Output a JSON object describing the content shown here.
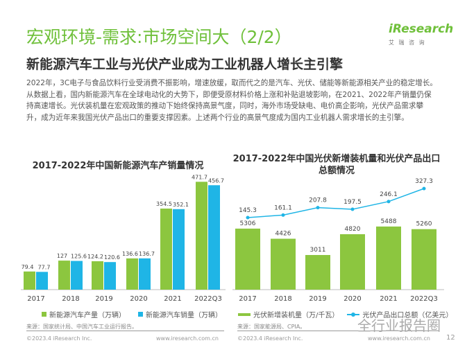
{
  "header": {
    "title": "宏观环境-需求:市场空间大（2/2）",
    "subtitle": "新能源汽车工业与光伏产业成为工业机器人增长主引擎",
    "logo": "iResearch",
    "logo_sub": "艾 瑞 咨 询"
  },
  "paragraph": "2022年，3C电子与食品饮料行业受消费不振影响，增速放缓，取而代之的是汽车、光伏、储能等新能源相关产业的稳定增长。从数据上看，国内新能源汽车在全球电动化的大势下，即便受原材料价格上涨和补贴退坡影响，在2021、2022年产销量仍保持高速增长。光伏装机量在宏观政策的推动下始终保持高景气度，同时，海外市场受缺电、电价高企影响，光伏产品需求攀升，成为近年来我国光伏产品出口的重要支撑因素。上述两个行业的高景气度成为国内工业机器人需求增长的主引擎。",
  "colors": {
    "green": "#8cc63f",
    "blue": "#1fb5e6",
    "title_green": "#6fc03a"
  },
  "chart_data": [
    {
      "type": "bar",
      "title": "2017-2022年中国新能源汽车产销量情况",
      "categories": [
        "2017",
        "2018",
        "2019",
        "2020",
        "2021",
        "2022Q3"
      ],
      "series": [
        {
          "name": "新能源汽车产量（万辆）",
          "values": [
            79.4,
            127,
            124.2,
            136.6,
            354.5,
            471.7
          ]
        },
        {
          "name": "新能源汽车销量（万辆）",
          "values": [
            77.7,
            125.6,
            120.6,
            136.7,
            352.1,
            456.7
          ]
        }
      ],
      "source": "来源：国家统计局、中国汽车工业运行报告。"
    },
    {
      "type": "bar+line",
      "title_line1": "2017-2022年中国光伏新增装机量和光伏产品出口",
      "title_line2": "总额情况",
      "categories": [
        "2017",
        "2018",
        "2019",
        "2020",
        "2021",
        "2022Q3"
      ],
      "series": [
        {
          "name": "光伏新增装机量（万/千瓦）",
          "type": "bar",
          "values": [
            5306,
            4426,
            3011,
            4820,
            5488,
            5260
          ]
        },
        {
          "name": "光伏产品出口总额（亿美元）",
          "type": "line",
          "values": [
            145.3,
            161.1,
            207.8,
            197.5,
            246.1,
            327.3
          ]
        }
      ],
      "source": "来源：国家能源局、CPIA。"
    }
  ],
  "footer": {
    "copyright": "©2023.4 iResearch Inc.",
    "url": "www.iresearch.com.cn",
    "page": "12",
    "watermark": "全行业报告圈"
  }
}
